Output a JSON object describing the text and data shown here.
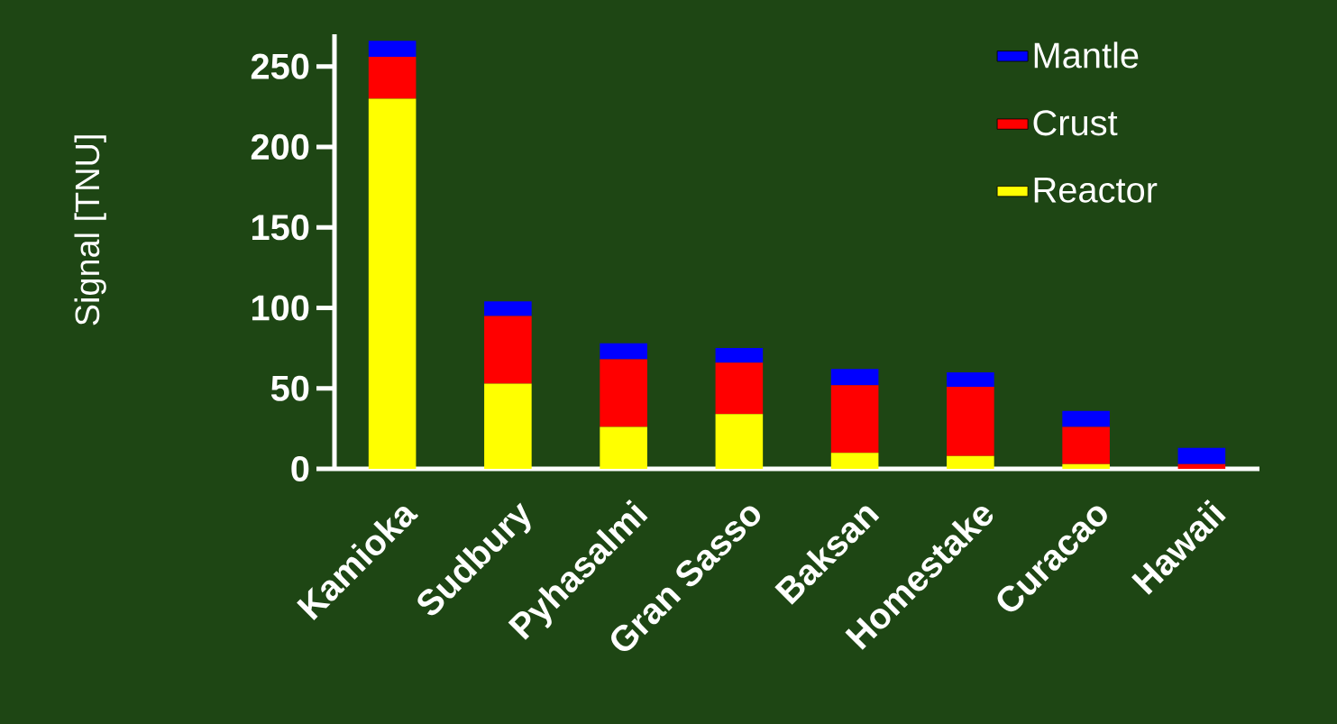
{
  "chart_data": {
    "type": "bar",
    "ylabel": "Signal [TNU]",
    "categories": [
      "Kamioka",
      "Sudbury",
      "Pyhasalmi",
      "Gran Sasso",
      "Baksan",
      "Homestake",
      "Curacao",
      "Hawaii"
    ],
    "stacked": true,
    "series": [
      {
        "name": "Reactor",
        "color": "#ffff00",
        "values": [
          230,
          53,
          26,
          34,
          10,
          8,
          3,
          0
        ]
      },
      {
        "name": "Crust",
        "color": "#ff0000",
        "values": [
          26,
          42,
          42,
          32,
          42,
          43,
          23,
          3
        ]
      },
      {
        "name": "Mantle",
        "color": "#0000ff",
        "values": [
          10,
          9,
          10,
          9,
          10,
          9,
          10,
          10
        ]
      }
    ],
    "ylim": [
      0,
      270
    ],
    "yticks": [
      0,
      50,
      100,
      150,
      200,
      250
    ],
    "legend": "top right"
  }
}
